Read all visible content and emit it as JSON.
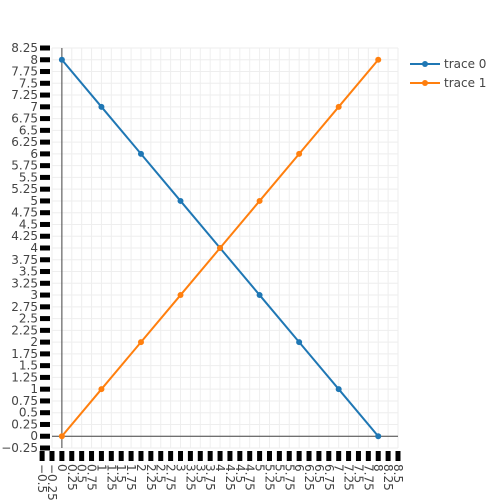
{
  "chart_data": {
    "type": "line",
    "title": "",
    "xlabel": "",
    "ylabel": "",
    "xlim": [
      -0.25,
      8.5
    ],
    "ylim": [
      -0.25,
      8.25
    ],
    "xticks": [
      -0.5,
      -0.25,
      0,
      0.25,
      0.5,
      0.75,
      1,
      1.25,
      1.5,
      1.75,
      2,
      2.25,
      2.5,
      2.75,
      3,
      3.25,
      3.5,
      3.75,
      4,
      4.25,
      4.5,
      4.75,
      5,
      5.25,
      5.5,
      5.75,
      6,
      6.25,
      6.5,
      6.75,
      7,
      7.25,
      7.5,
      7.75,
      8,
      8.25,
      8.5
    ],
    "xtick_labels": [
      "−0.5",
      "−0.25",
      "0",
      "0.25",
      "0.5",
      "0.75",
      "1",
      "1.25",
      "1.5",
      "1.75",
      "2",
      "2.25",
      "2.5",
      "2.75",
      "3",
      "3.25",
      "3.5",
      "3.75",
      "4",
      "4.25",
      "4.5",
      "4.75",
      "5",
      "5.25",
      "5.5",
      "5.75",
      "6",
      "6.25",
      "6.5",
      "6.75",
      "7",
      "7.25",
      "7.5",
      "7.75",
      "8",
      "8.25",
      "8.5"
    ],
    "yticks": [
      -0.25,
      0,
      0.25,
      0.5,
      0.75,
      1,
      1.25,
      1.5,
      1.75,
      2,
      2.25,
      2.5,
      2.75,
      3,
      3.25,
      3.5,
      3.75,
      4,
      4.25,
      4.5,
      4.75,
      5,
      5.25,
      5.5,
      5.75,
      6,
      6.25,
      6.5,
      6.75,
      7,
      7.25,
      7.5,
      7.75,
      8,
      8.25
    ],
    "ytick_labels": [
      "−0.25",
      "0",
      "0.25",
      "0.5",
      "0.75",
      "1",
      "1.25",
      "1.5",
      "1.75",
      "2",
      "2.25",
      "2.5",
      "2.75",
      "3",
      "3.25",
      "3.5",
      "3.75",
      "4",
      "4.25",
      "4.5",
      "4.75",
      "5",
      "5.25",
      "5.5",
      "5.75",
      "6",
      "6.25",
      "6.5",
      "6.75",
      "7",
      "7.25",
      "7.5",
      "7.75",
      "8",
      "8.25"
    ],
    "grid": true,
    "legend_position": "top-right",
    "x": [
      0,
      1,
      2,
      3,
      4,
      5,
      6,
      7,
      8
    ],
    "series": [
      {
        "name": "trace 0",
        "color": "#1f77b4",
        "values": [
          8,
          7,
          6,
          5,
          4,
          3,
          2,
          1,
          0
        ]
      },
      {
        "name": "trace 1",
        "color": "#ff7f0e",
        "values": [
          0,
          1,
          2,
          3,
          4,
          5,
          6,
          7,
          8
        ]
      }
    ]
  }
}
